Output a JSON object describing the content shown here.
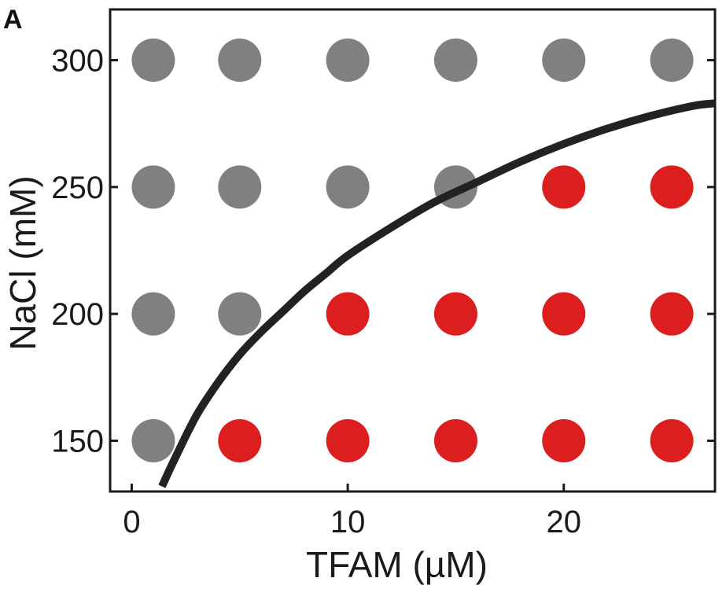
{
  "panel_label": "A",
  "chart_data": {
    "type": "scatter",
    "title": "",
    "xlabel": "TFAM (µM)",
    "ylabel": "NaCl (mM)",
    "xlim": [
      -1,
      27
    ],
    "ylim": [
      130,
      320
    ],
    "x_ticks": [
      0,
      10,
      20
    ],
    "y_ticks": [
      150,
      200,
      250,
      300
    ],
    "x_tick_labels": [
      "0",
      "10",
      "20"
    ],
    "y_tick_labels": [
      "150",
      "200",
      "250",
      "300"
    ],
    "grid": false,
    "legend": false,
    "colors": {
      "gray": "#808080",
      "red": "#dc1e1e",
      "line": "#222222",
      "axes": "#1a1a1a"
    },
    "series": [
      {
        "color": "#808080",
        "points": [
          [
            1,
            300
          ],
          [
            5,
            300
          ],
          [
            10,
            300
          ],
          [
            15,
            300
          ],
          [
            20,
            300
          ],
          [
            25,
            300
          ],
          [
            1,
            250
          ],
          [
            5,
            250
          ],
          [
            10,
            250
          ],
          [
            15,
            250
          ],
          [
            1,
            200
          ],
          [
            5,
            200
          ],
          [
            1,
            150
          ]
        ]
      },
      {
        "color": "#dc1e1e",
        "points": [
          [
            20,
            250
          ],
          [
            25,
            250
          ],
          [
            10,
            200
          ],
          [
            15,
            200
          ],
          [
            20,
            200
          ],
          [
            25,
            200
          ],
          [
            5,
            150
          ],
          [
            10,
            150
          ],
          [
            15,
            150
          ],
          [
            20,
            150
          ],
          [
            25,
            150
          ]
        ]
      }
    ],
    "curve": {
      "color": "#222222",
      "points": [
        [
          1.4,
          132
        ],
        [
          2,
          143
        ],
        [
          3,
          160
        ],
        [
          4,
          173
        ],
        [
          5,
          184
        ],
        [
          6,
          193
        ],
        [
          7,
          201
        ],
        [
          8,
          209
        ],
        [
          9,
          216
        ],
        [
          10,
          223
        ],
        [
          12,
          234
        ],
        [
          14,
          244
        ],
        [
          16,
          252
        ],
        [
          18,
          260
        ],
        [
          20,
          267
        ],
        [
          22,
          273
        ],
        [
          24,
          278
        ],
        [
          26,
          282
        ],
        [
          27,
          283
        ]
      ]
    }
  }
}
